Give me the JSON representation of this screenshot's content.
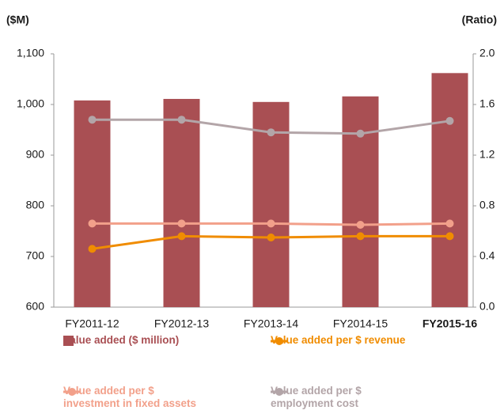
{
  "chart_data": {
    "type": "bar_line",
    "y_axis_label": "($M)",
    "y2_axis_label": "(Ratio)",
    "categories": [
      "FY2011-12",
      "FY2012-13",
      "FY2013-14",
      "FY2014-15",
      "FY2015-16"
    ],
    "highlight_category": 4,
    "series": [
      {
        "name": "Value added ($ million)",
        "type": "bar",
        "color": "#a94f53",
        "values": [
          1008,
          1011,
          1005,
          1016,
          1062
        ]
      },
      {
        "name": "Value added per $ revenue",
        "type": "line",
        "axis": "y2",
        "color": "#f08c00",
        "values": [
          0.46,
          0.56,
          0.55,
          0.56,
          0.56
        ]
      },
      {
        "name": "Value added per $\ninvestment in fixed assets",
        "type": "line",
        "axis": "y2",
        "color": "#f2a08a",
        "values": [
          0.66,
          0.66,
          0.66,
          0.65,
          0.66
        ]
      },
      {
        "name": "Value added per $\nemployment cost",
        "type": "line",
        "axis": "y2",
        "color": "#b3a5a8",
        "values": [
          1.48,
          1.48,
          1.38,
          1.37,
          1.47
        ]
      }
    ],
    "ylim": [
      600,
      1100
    ],
    "yticks": [
      600,
      700,
      800,
      900,
      {
        "value": 1000,
        "label": "1,000"
      },
      {
        "value": 1100,
        "label": "1,100"
      }
    ],
    "y2lim": [
      0,
      2
    ],
    "y2ticks": [
      {
        "value": 0,
        "label": "0.0"
      },
      {
        "value": 0.4,
        "label": "0.4"
      },
      {
        "value": 0.8,
        "label": "0.8"
      },
      {
        "value": 1.2,
        "label": "1.2"
      },
      {
        "value": 1.6,
        "label": "1.6"
      },
      {
        "value": 2,
        "label": "2.0"
      }
    ]
  }
}
